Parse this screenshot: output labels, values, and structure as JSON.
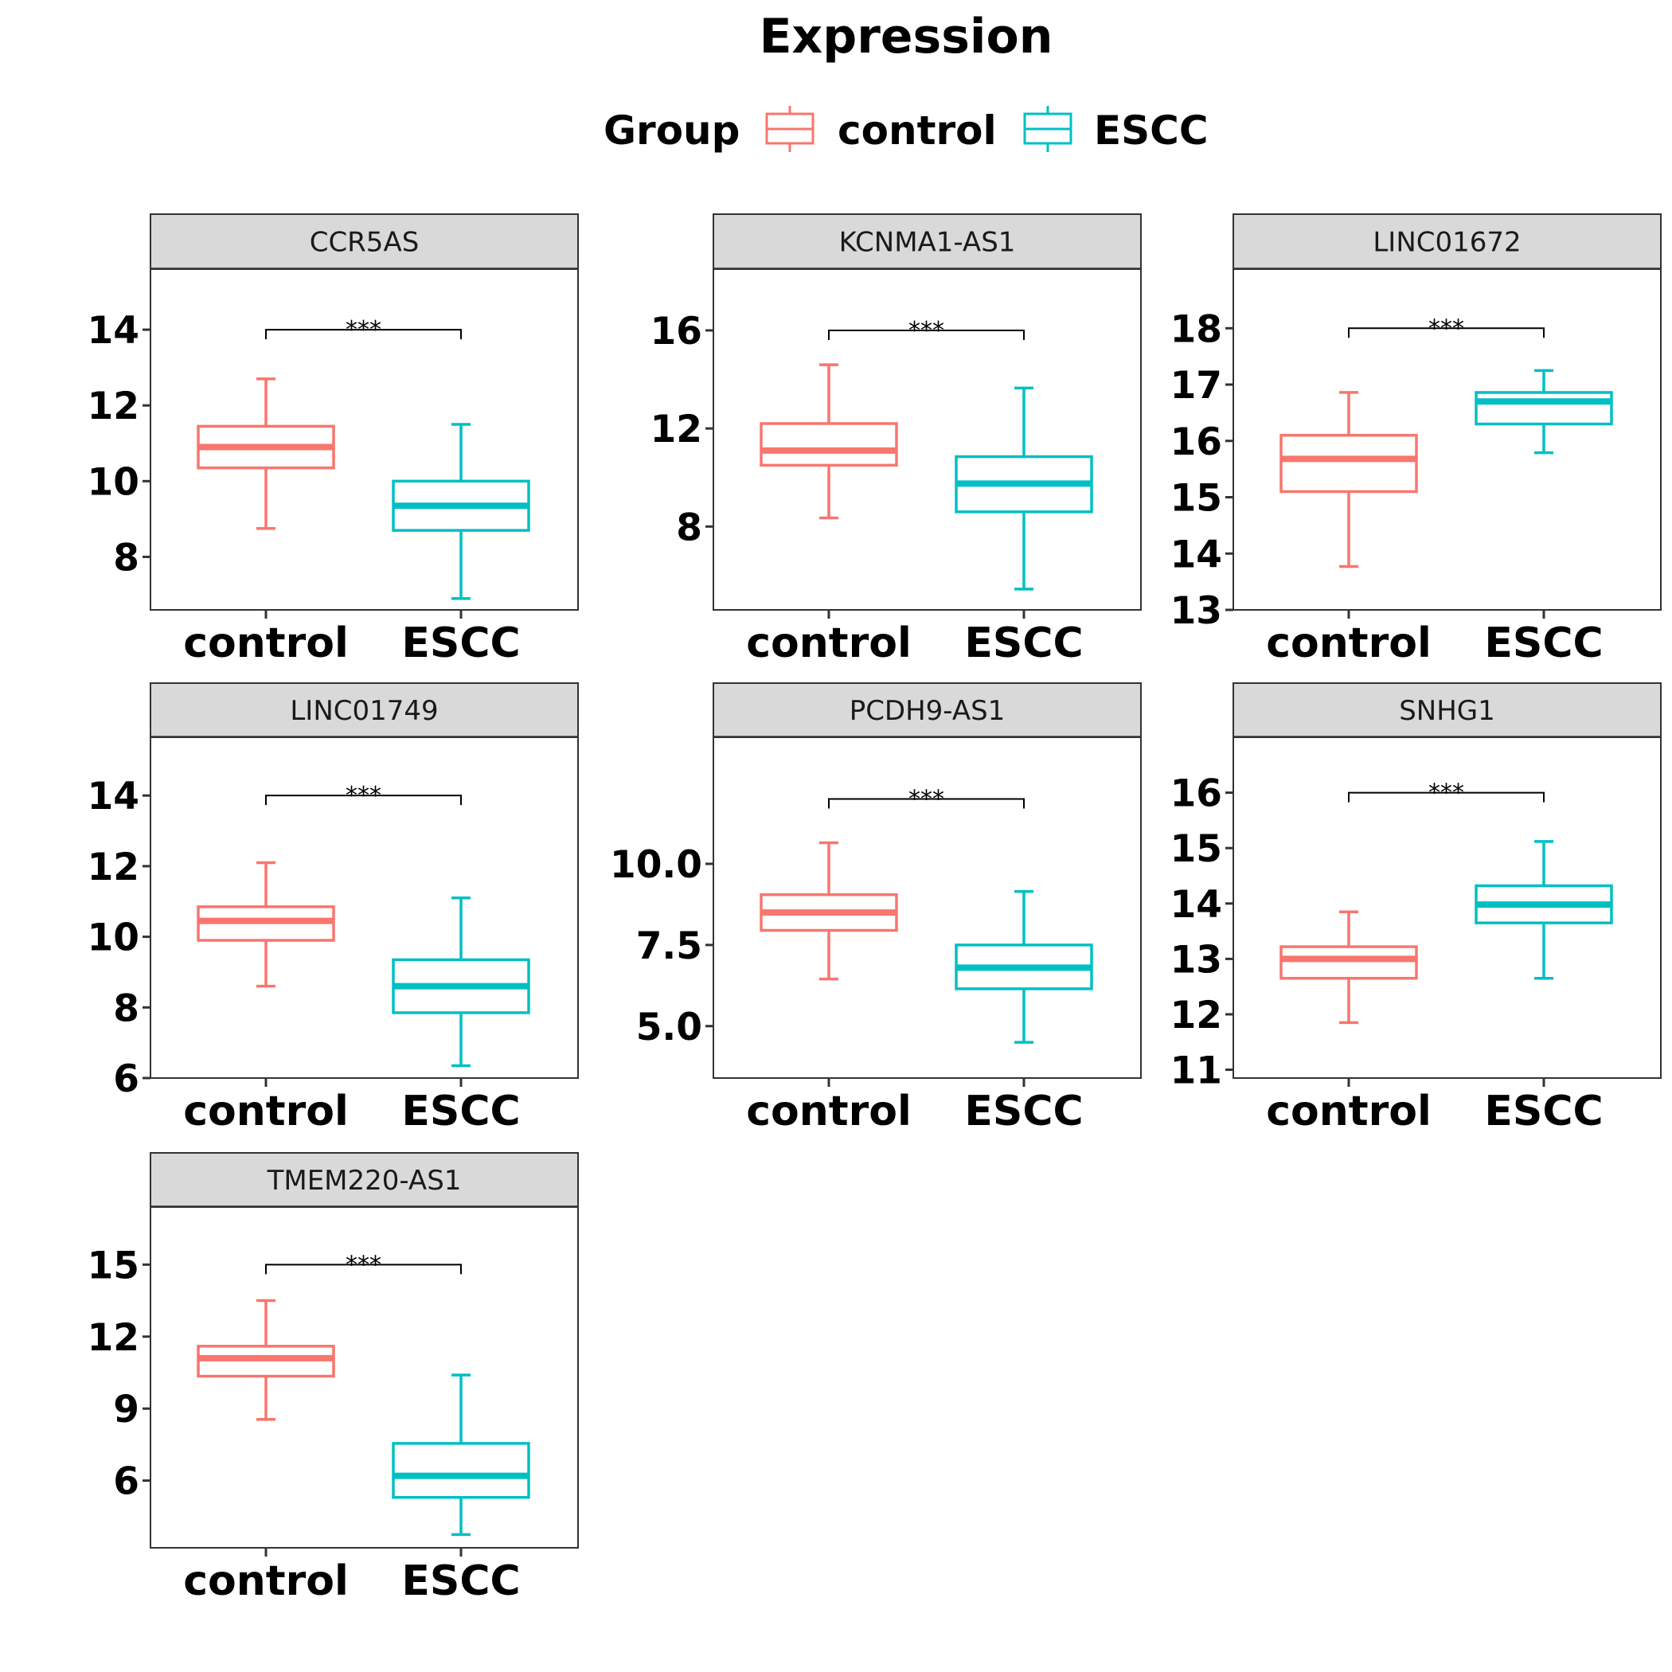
{
  "chart_data": {
    "type": "boxplot",
    "title": "Expression",
    "legend": {
      "title": "Group",
      "position": "top",
      "entries": [
        {
          "name": "control",
          "color": "#F8766D"
        },
        {
          "name": "ESCC",
          "color": "#00BFC4"
        }
      ]
    },
    "categories": [
      "control",
      "ESCC"
    ],
    "grid": false,
    "panels": [
      {
        "name": "CCR5AS",
        "ylim": [
          6.6,
          15.6
        ],
        "yticks": [
          8,
          10,
          12,
          14
        ],
        "ytick_labels": [
          "8",
          "10",
          "12",
          "14"
        ],
        "boxes": [
          {
            "group": "control",
            "whisker_low": 8.75,
            "q1": 10.35,
            "median": 10.9,
            "q3": 11.45,
            "whisker_high": 12.7
          },
          {
            "group": "ESCC",
            "whisker_low": 6.9,
            "q1": 8.7,
            "median": 9.35,
            "q3": 10.0,
            "whisker_high": 11.5
          }
        ],
        "significance": {
          "label": "***",
          "y": 14.0
        }
      },
      {
        "name": "KCNMA1-AS1",
        "ylim": [
          4.6,
          18.5
        ],
        "yticks": [
          8,
          12,
          16
        ],
        "ytick_labels": [
          "8",
          "12",
          "16"
        ],
        "boxes": [
          {
            "group": "control",
            "whisker_low": 8.35,
            "q1": 10.5,
            "median": 11.1,
            "q3": 12.2,
            "whisker_high": 14.6
          },
          {
            "group": "ESCC",
            "whisker_low": 5.45,
            "q1": 8.6,
            "median": 9.75,
            "q3": 10.85,
            "whisker_high": 13.65
          }
        ],
        "significance": {
          "label": "***",
          "y": 16.0
        }
      },
      {
        "name": "LINC01672",
        "ylim": [
          13.0,
          19.05
        ],
        "yticks": [
          13,
          14,
          15,
          16,
          17,
          18
        ],
        "ytick_labels": [
          "13",
          "14",
          "15",
          "16",
          "17",
          "18"
        ],
        "boxes": [
          {
            "group": "control",
            "whisker_low": 13.77,
            "q1": 15.1,
            "median": 15.68,
            "q3": 16.1,
            "whisker_high": 16.86
          },
          {
            "group": "ESCC",
            "whisker_low": 15.79,
            "q1": 16.3,
            "median": 16.7,
            "q3": 16.86,
            "whisker_high": 17.25
          }
        ],
        "significance": {
          "label": "***",
          "y": 18.0
        }
      },
      {
        "name": "LINC01749",
        "ylim": [
          6.0,
          15.65
        ],
        "yticks": [
          6,
          8,
          10,
          12,
          14
        ],
        "ytick_labels": [
          "6",
          "8",
          "10",
          "12",
          "14"
        ],
        "boxes": [
          {
            "group": "control",
            "whisker_low": 8.6,
            "q1": 9.9,
            "median": 10.45,
            "q3": 10.85,
            "whisker_high": 12.1
          },
          {
            "group": "ESCC",
            "whisker_low": 6.35,
            "q1": 7.85,
            "median": 8.6,
            "q3": 9.35,
            "whisker_high": 11.1
          }
        ],
        "significance": {
          "label": "***",
          "y": 14.0
        }
      },
      {
        "name": "PCDH9-AS1",
        "ylim": [
          3.4,
          13.9
        ],
        "yticks": [
          5.0,
          7.5,
          10.0
        ],
        "ytick_labels": [
          "5.0",
          "7.5",
          "10.0"
        ],
        "boxes": [
          {
            "group": "control",
            "whisker_low": 6.45,
            "q1": 7.95,
            "median": 8.5,
            "q3": 9.05,
            "whisker_high": 10.65
          },
          {
            "group": "ESCC",
            "whisker_low": 4.5,
            "q1": 6.15,
            "median": 6.8,
            "q3": 7.5,
            "whisker_high": 9.15
          }
        ],
        "significance": {
          "label": "***",
          "y": 12.0
        }
      },
      {
        "name": "SNHG1",
        "ylim": [
          10.85,
          17.0
        ],
        "yticks": [
          11,
          12,
          13,
          14,
          15,
          16
        ],
        "ytick_labels": [
          "11",
          "12",
          "13",
          "14",
          "15",
          "16"
        ],
        "boxes": [
          {
            "group": "control",
            "whisker_low": 11.85,
            "q1": 12.65,
            "median": 13.0,
            "q3": 13.22,
            "whisker_high": 13.85
          },
          {
            "group": "ESCC",
            "whisker_low": 12.65,
            "q1": 13.65,
            "median": 13.98,
            "q3": 14.32,
            "whisker_high": 15.12
          }
        ],
        "significance": {
          "label": "***",
          "y": 16.0
        }
      },
      {
        "name": "TMEM220-AS1",
        "ylim": [
          3.2,
          17.4
        ],
        "yticks": [
          6,
          9,
          12,
          15
        ],
        "ytick_labels": [
          "6",
          "9",
          "12",
          "15"
        ],
        "boxes": [
          {
            "group": "control",
            "whisker_low": 8.55,
            "q1": 10.35,
            "median": 11.1,
            "q3": 11.6,
            "whisker_high": 13.5
          },
          {
            "group": "ESCC",
            "whisker_low": 3.75,
            "q1": 5.3,
            "median": 6.2,
            "q3": 7.55,
            "whisker_high": 10.4
          }
        ],
        "significance": {
          "label": "***",
          "y": 15.0
        }
      }
    ]
  }
}
